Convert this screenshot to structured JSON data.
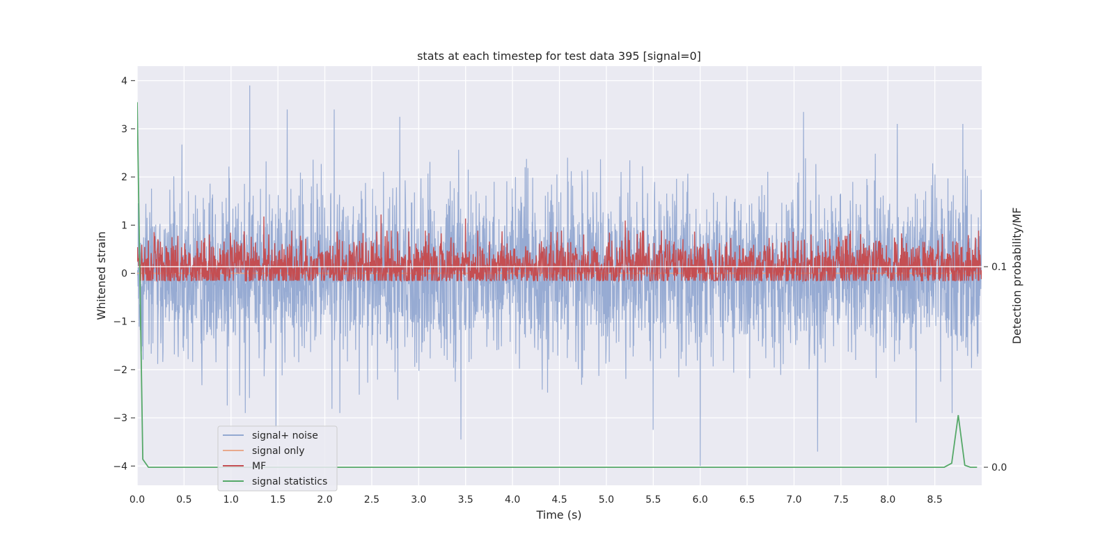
{
  "chart_data": {
    "type": "line",
    "title": "stats at each timestep for test data 395 [signal=0]",
    "xlabel": "Time (s)",
    "ylabel": "Whitened strain",
    "y2label": "Detection probability/MF",
    "xlim": [
      0.0,
      9.0
    ],
    "ylim": [
      -4.4,
      4.3
    ],
    "y2lim": [
      -0.009,
      0.2
    ],
    "x_ticks": [
      0.0,
      0.5,
      1.0,
      1.5,
      2.0,
      2.5,
      3.0,
      3.5,
      4.0,
      4.5,
      5.0,
      5.5,
      6.0,
      6.5,
      7.0,
      7.5,
      8.0,
      8.5
    ],
    "x_tick_labels": [
      "0.0",
      "0.5",
      "1.0",
      "1.5",
      "2.0",
      "2.5",
      "3.0",
      "3.5",
      "4.0",
      "4.5",
      "5.0",
      "5.5",
      "6.0",
      "6.5",
      "7.0",
      "7.5",
      "8.0",
      "8.5"
    ],
    "y_ticks": [
      4,
      3,
      2,
      1,
      0,
      -1,
      -2,
      -3,
      -4
    ],
    "y_tick_labels": [
      "4",
      "3",
      "2",
      "1",
      "0",
      "−1",
      "−2",
      "−3",
      "−4"
    ],
    "y2_ticks": [
      0.1,
      0.0
    ],
    "y2_tick_labels": [
      "0.1",
      "0.0"
    ],
    "grid": true,
    "legend_position": "bottom-left",
    "series": [
      {
        "name": "signal+ noise",
        "color": "#92a8d1",
        "axis": "left",
        "description": "whitened strain noise, approx. within [-4, 3.9], spikes up to 3.9 near t=1.2 and down to -4.0 near t=6.0",
        "envelope_upper": 2.3,
        "envelope_lower": -2.3,
        "peaks": [
          {
            "x": 1.2,
            "y": 3.9
          },
          {
            "x": 2.1,
            "y": 3.4
          },
          {
            "x": 1.6,
            "y": 3.4
          },
          {
            "x": 2.8,
            "y": 3.25
          },
          {
            "x": 7.1,
            "y": 3.35
          },
          {
            "x": 8.1,
            "y": 3.1
          },
          {
            "x": 8.8,
            "y": 3.1
          },
          {
            "x": 3.45,
            "y": -3.45
          },
          {
            "x": 6.0,
            "y": -4.0
          },
          {
            "x": 5.5,
            "y": -3.25
          },
          {
            "x": 7.25,
            "y": -3.7
          },
          {
            "x": 1.48,
            "y": -3.2
          },
          {
            "x": 8.3,
            "y": -3.1
          }
        ]
      },
      {
        "name": "signal only",
        "color": "#e8a98c",
        "axis": "left",
        "values_constant": 0.0
      },
      {
        "name": "MF",
        "color": "#c44e52",
        "axis": "right",
        "base": 0.1,
        "envelope_upper": 0.118,
        "envelope_lower": 0.093,
        "peaks": [
          {
            "x": 2.6,
            "y": 0.126
          },
          {
            "x": 1.35,
            "y": 0.125
          },
          {
            "x": 3.5,
            "y": 0.124
          },
          {
            "x": 5.2,
            "y": 0.123
          }
        ]
      },
      {
        "name": "signal statistics",
        "color": "#55a868",
        "axis": "right",
        "x": [
          0.0,
          0.06,
          0.12,
          1.0,
          2.0,
          3.0,
          4.0,
          5.0,
          6.0,
          7.0,
          8.0,
          8.6,
          8.68,
          8.75,
          8.82,
          8.88,
          8.95
        ],
        "values": [
          0.182,
          0.004,
          0.0,
          0.0,
          0.0,
          0.0,
          0.0,
          0.0,
          0.0,
          0.0,
          0.0,
          0.0,
          0.002,
          0.026,
          0.001,
          0.0,
          0.0
        ]
      }
    ]
  }
}
